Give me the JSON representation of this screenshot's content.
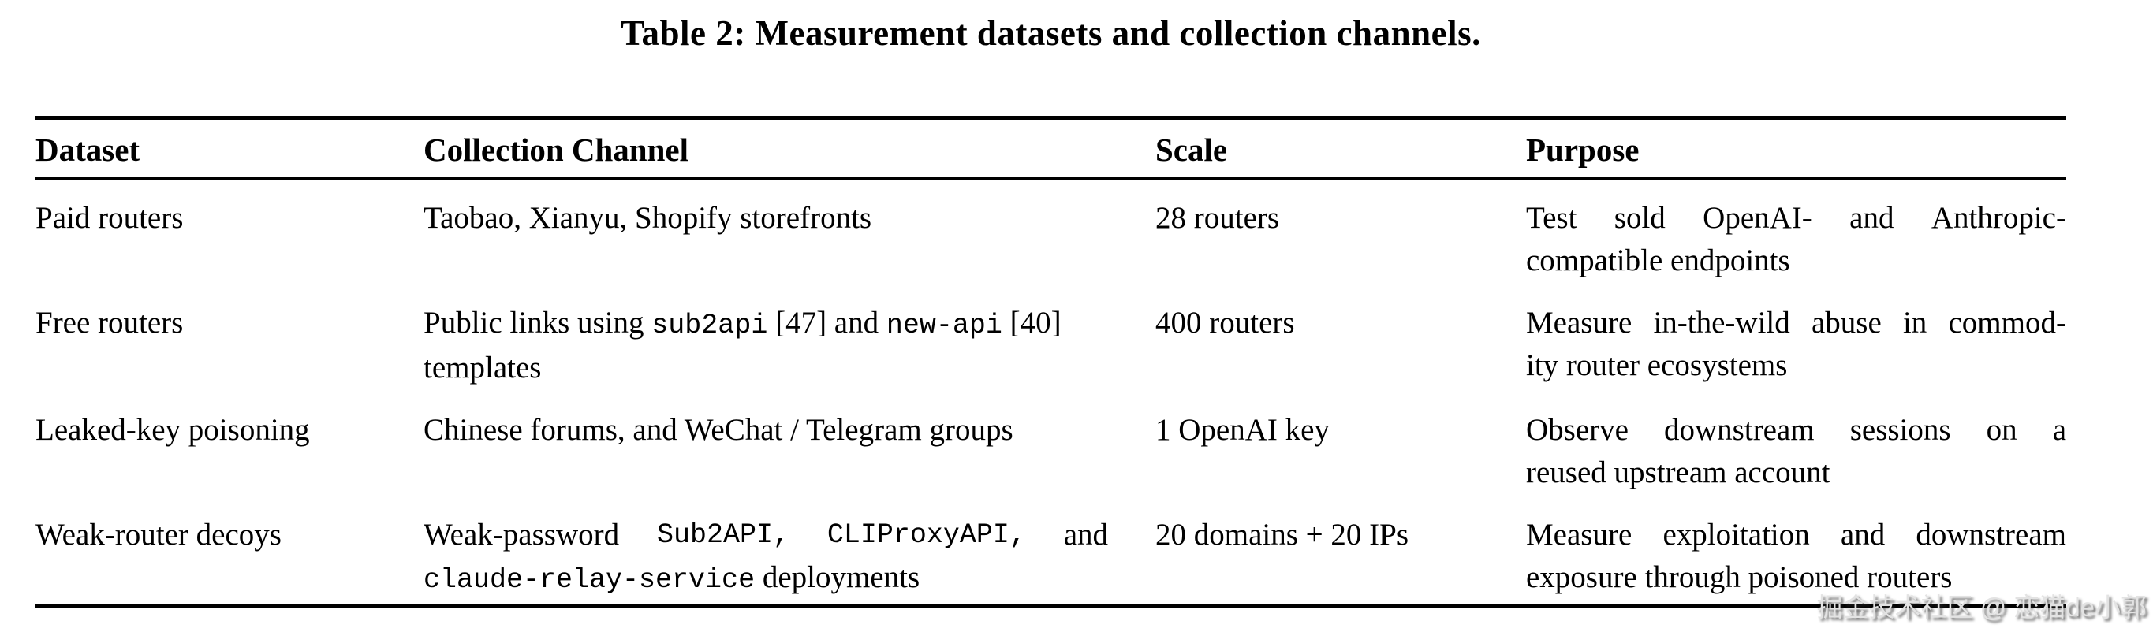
{
  "title": "Table 2: Measurement datasets and collection channels.",
  "watermark": "掘金技术社区 @ 恋猫de小郭",
  "colors": {
    "background": "#ffffff",
    "text": "#000000",
    "rule": "#000000",
    "watermark": "#e3e3e3"
  },
  "table": {
    "headers": [
      "Dataset",
      "Collection Channel",
      "Scale",
      "Purpose"
    ],
    "rows": [
      {
        "dataset": "Paid routers",
        "channel": [
          {
            "j": false,
            "seg": [
              {
                "t": "Taobao, Xianyu, Shopify storefronts",
                "m": false
              }
            ]
          }
        ],
        "scale": "28 routers",
        "purpose": [
          {
            "j": true,
            "seg": [
              {
                "t": "Test sold OpenAI- and Anthropic-",
                "m": false
              }
            ]
          },
          {
            "j": false,
            "seg": [
              {
                "t": "compatible endpoints",
                "m": false
              }
            ]
          }
        ]
      },
      {
        "dataset": "Free routers",
        "channel": [
          {
            "j": false,
            "seg": [
              {
                "t": "Public links using ",
                "m": false
              },
              {
                "t": "sub2api",
                "m": true
              },
              {
                "t": " [47] and ",
                "m": false
              },
              {
                "t": "new-api",
                "m": true
              },
              {
                "t": " [40]",
                "m": false
              }
            ]
          },
          {
            "j": false,
            "seg": [
              {
                "t": "templates",
                "m": false
              }
            ]
          }
        ],
        "scale": "400 routers",
        "purpose": [
          {
            "j": true,
            "seg": [
              {
                "t": "Measure in-the-wild abuse in commod-",
                "m": false
              }
            ]
          },
          {
            "j": false,
            "seg": [
              {
                "t": "ity router ecosystems",
                "m": false
              }
            ]
          }
        ]
      },
      {
        "dataset": "Leaked-key poisoning",
        "channel": [
          {
            "j": false,
            "seg": [
              {
                "t": "Chinese forums, and WeChat / Telegram groups",
                "m": false
              }
            ]
          }
        ],
        "scale": "1 OpenAI key",
        "purpose": [
          {
            "j": true,
            "seg": [
              {
                "t": "Observe downstream sessions on a",
                "m": false
              }
            ]
          },
          {
            "j": false,
            "seg": [
              {
                "t": "reused upstream account",
                "m": false
              }
            ]
          }
        ]
      },
      {
        "dataset": "Weak-router decoys",
        "channel": [
          {
            "j": true,
            "seg": [
              {
                "t": "Weak-password ",
                "m": false
              },
              {
                "t": "Sub2API,",
                "m": true
              },
              {
                "t": " ",
                "m": false
              },
              {
                "t": "CLIProxyAPI,",
                "m": true
              },
              {
                "t": " and",
                "m": false
              }
            ]
          },
          {
            "j": false,
            "seg": [
              {
                "t": "claude-relay-service",
                "m": true
              },
              {
                "t": " deployments",
                "m": false
              }
            ]
          }
        ],
        "scale": "20 domains + 20 IPs",
        "purpose": [
          {
            "j": true,
            "seg": [
              {
                "t": "Measure exploitation and downstream",
                "m": false
              }
            ]
          },
          {
            "j": false,
            "seg": [
              {
                "t": "exposure through poisoned routers",
                "m": false
              }
            ]
          }
        ]
      }
    ]
  }
}
